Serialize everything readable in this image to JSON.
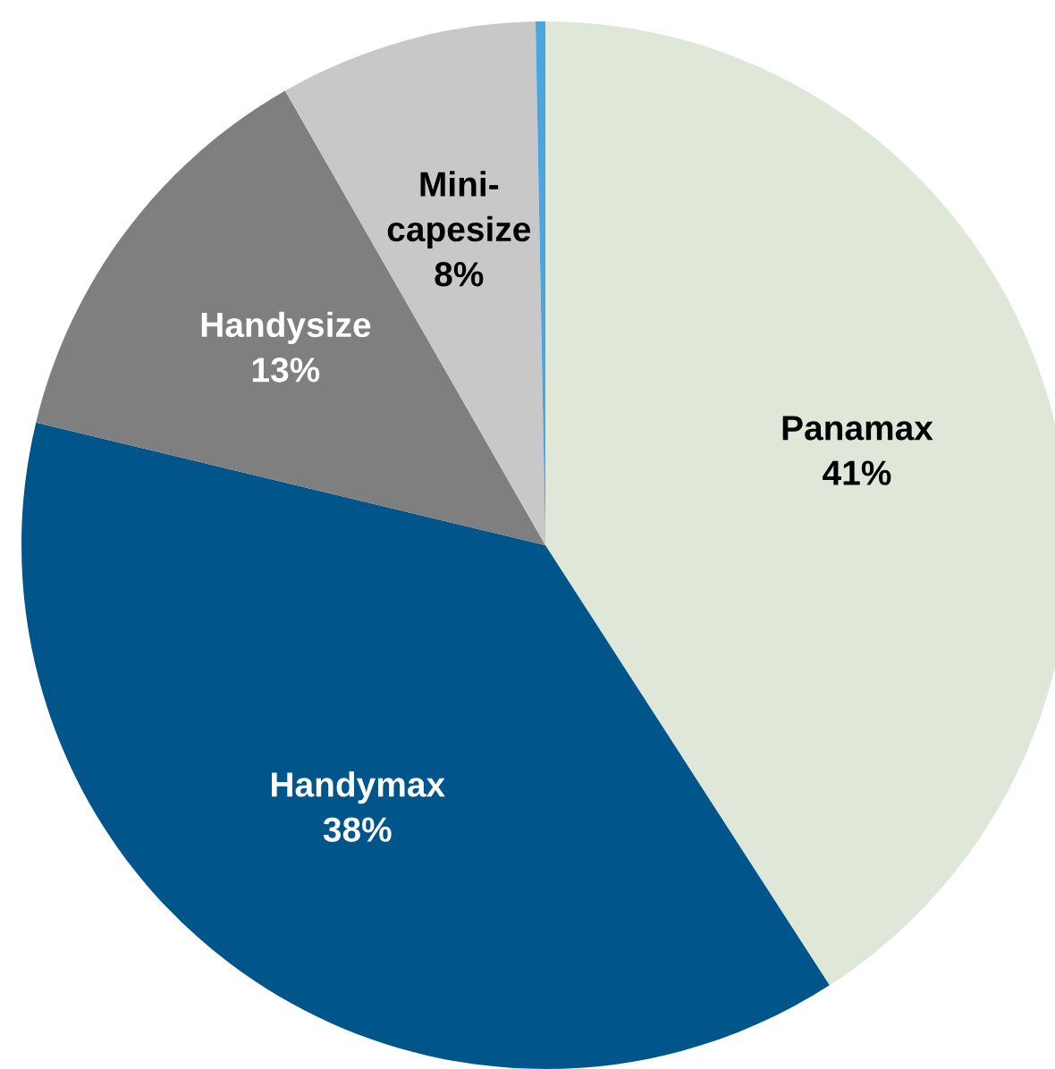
{
  "chart_data": {
    "type": "pie",
    "categories": [
      "Panamax",
      "Handymax",
      "Handysize",
      "Mini-\ncapesize",
      null
    ],
    "values": [
      41,
      38,
      13,
      8,
      0.3
    ],
    "value_labels": [
      "41%",
      "38%",
      "13%",
      "8%",
      null
    ],
    "colors": [
      "#dfe8d8",
      "#00558a",
      "#7f7f7f",
      "#c8c8c8",
      "#4ba6e0"
    ]
  }
}
